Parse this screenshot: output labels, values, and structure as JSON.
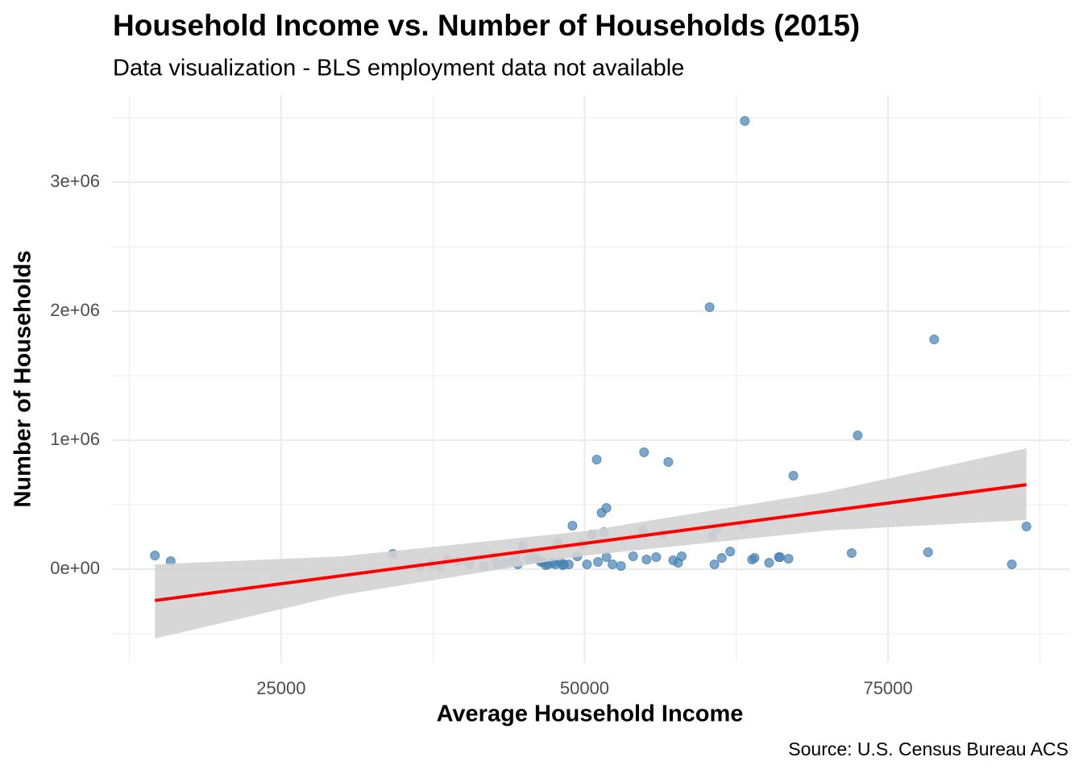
{
  "chart_data": {
    "type": "scatter",
    "title": "Household Income vs. Number of Households (2015)",
    "subtitle": "Data visualization - BLS employment data not available",
    "x_label": "Average Household Income",
    "y_label": "Number of Households",
    "caption": "Source: U.S. Census Bureau ACS",
    "color": "#4682b4",
    "x": [
      14600,
      15900,
      34200,
      36400,
      37400,
      38100,
      38700,
      39600,
      40500,
      41700,
      42500,
      42800,
      43300,
      44000,
      44300,
      44900,
      45400,
      45800,
      46200,
      46400,
      46800,
      47000,
      47400,
      47800,
      48000,
      48200,
      49000,
      49400,
      49800,
      50200,
      50600,
      51000,
      51100,
      51400,
      51600,
      51800,
      51800,
      52300,
      53000,
      54000,
      54900,
      54800,
      55100,
      55900,
      56400,
      56900,
      57300,
      57700,
      58000,
      60300,
      60500,
      60700,
      60900,
      61300,
      62000,
      63200,
      63100,
      63800,
      64000,
      65200,
      66000,
      66100,
      66800,
      67200,
      72000,
      72500,
      78300,
      78800,
      85200,
      86400,
      44500,
      45600,
      46600,
      47600,
      48300,
      48700
    ],
    "y": [
      106000,
      62500,
      119000,
      19000,
      37500,
      25000,
      75000,
      62500,
      37500,
      25000,
      94000,
      37500,
      50000,
      56000,
      87500,
      181000,
      81000,
      100000,
      75000,
      56000,
      31000,
      37500,
      50000,
      206000,
      56000,
      31000,
      337500,
      100000,
      194000,
      37500,
      269000,
      850000,
      56000,
      437500,
      287500,
      475000,
      94000,
      37500,
      25000,
      100000,
      906000,
      300000,
      75000,
      94000,
      275000,
      831000,
      69000,
      50000,
      100000,
      2031000,
      256000,
      37500,
      312500,
      87500,
      137500,
      3475000,
      344000,
      75000,
      87500,
      50000,
      94000,
      94000,
      81000,
      725000,
      125000,
      1037500,
      131000,
      1781000,
      37500,
      331000,
      37500,
      81000,
      56000,
      37500,
      37500,
      37500
    ],
    "xlim": [
      11000,
      90000
    ],
    "ylim": [
      -725000,
      3675000
    ],
    "xticks": [
      25000,
      50000,
      75000
    ],
    "yticks": [
      {
        "value": 0,
        "label": "0e+00"
      },
      {
        "value": 1000000,
        "label": "1e+06"
      },
      {
        "value": 2000000,
        "label": "2e+06"
      },
      {
        "value": 3000000,
        "label": "3e+06"
      }
    ],
    "x_minor_grid": [
      12500,
      37500,
      62500,
      87500
    ],
    "y_minor_grid": [
      -500000,
      500000,
      1500000,
      2500000,
      3500000
    ],
    "grid": true,
    "trend": {
      "color": "#ff0000",
      "x": [
        14600,
        86400
      ],
      "y": [
        -242500,
        655000
      ]
    },
    "band": {
      "color": "#d3d3d3",
      "x": [
        14600,
        30000,
        50000,
        70000,
        86400
      ],
      "lower": [
        -537500,
        -200000,
        105000,
        300000,
        381000
      ],
      "upper": [
        37500,
        100000,
        295000,
        600000,
        937500
      ]
    }
  }
}
